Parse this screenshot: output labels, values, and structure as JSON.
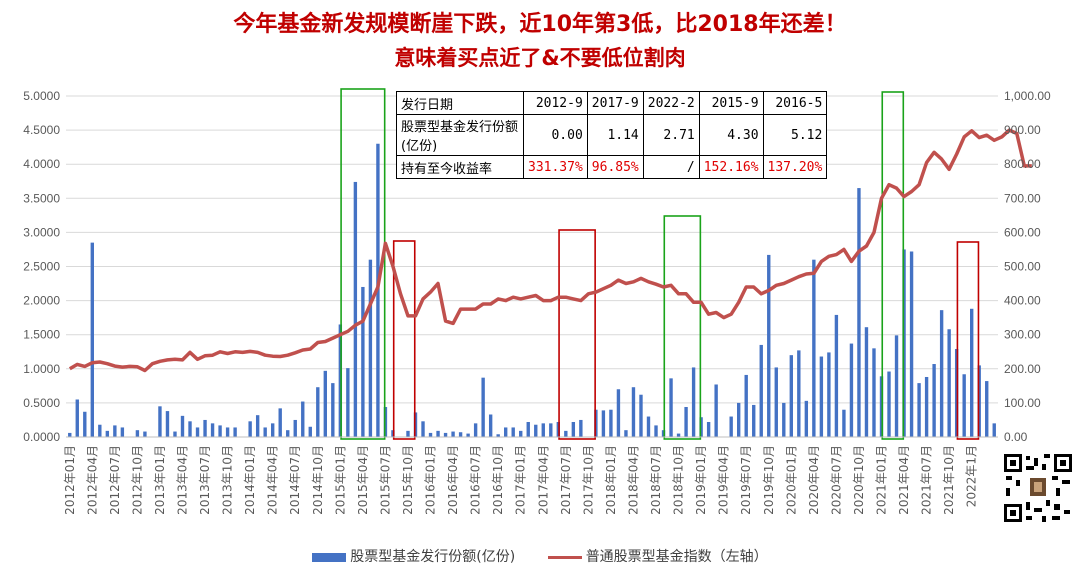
{
  "title": {
    "line1": "今年基金新发规模断崖下跌，近10年第3低，比2018年还差！",
    "line2": "意味着买点近了&不要低位割肉"
  },
  "colors": {
    "bar": "#4472c4",
    "line": "#c0504d",
    "title": "#c00000",
    "green_box": "#1aa31a",
    "red_box": "#c00000",
    "red_text": "#e00000"
  },
  "info_table": {
    "header": [
      "发行日期",
      "2012-9",
      "2017-9",
      "2022-2",
      "2015-9",
      "2016-5"
    ],
    "rows": [
      {
        "label": "股票型基金发行份额(亿份)",
        "values": [
          "0.00",
          "1.14",
          "2.71",
          "4.30",
          "5.12"
        ]
      },
      {
        "label": "持有至今收益率",
        "values": [
          "331.37%",
          "96.85%",
          "/",
          "152.16%",
          "137.20%"
        ]
      }
    ]
  },
  "legend": [
    "股票型基金发行份额(亿份)",
    "普通股票型基金指数（左轴）"
  ],
  "chart_data": {
    "type": "bar",
    "left_axis": {
      "min": 0,
      "max": 5,
      "ticks": [
        "0.0000",
        "0.5000",
        "1.0000",
        "1.5000",
        "2.0000",
        "2.5000",
        "3.0000",
        "3.5000",
        "4.0000",
        "4.5000",
        "5.0000"
      ]
    },
    "right_axis": {
      "min": 0,
      "max": 1000,
      "ticks": [
        "0.00",
        "100.00",
        "200.00",
        "300.00",
        "400.00",
        "500.00",
        "600.00",
        "700.00",
        "800.00",
        "900.00",
        "1,000.00"
      ]
    },
    "x_tick_labels": [
      "2012年01月",
      "2012年04月",
      "2012年07月",
      "2012年10月",
      "2013年01月",
      "2013年04月",
      "2013年07月",
      "2013年10月",
      "2014年01月",
      "2014年04月",
      "2014年07月",
      "2014年10月",
      "2015年01月",
      "2015年04月",
      "2015年07月",
      "2015年10月",
      "2016年01月",
      "2016年04月",
      "2016年07月",
      "2016年10月",
      "2017年01月",
      "2017年04月",
      "2017年07月",
      "2017年10月",
      "2018年01月",
      "2018年04月",
      "2018年07月",
      "2018年10月",
      "2019年01月",
      "2019年04月",
      "2019年07月",
      "2019年10月",
      "2020年01月",
      "2020年04月",
      "2020年07月",
      "2020年10月",
      "2021年01月",
      "2021年04月",
      "2021年07月",
      "2021年10月",
      "2022年1月"
    ],
    "series": [
      {
        "name": "股票型基金发行份额(亿份)",
        "type": "bar",
        "values": [
          0.06,
          0.55,
          0.37,
          2.85,
          0.18,
          0.09,
          0.17,
          0.14,
          0,
          0.1,
          0.08,
          0,
          0.45,
          0.38,
          0.08,
          0.31,
          0.23,
          0.14,
          0.25,
          0.2,
          0.17,
          0.14,
          0.14,
          0,
          0.23,
          0.32,
          0.14,
          0.2,
          0.42,
          0.1,
          0.25,
          0.52,
          0.15,
          0.73,
          0.97,
          0.79,
          1.65,
          1.01,
          3.74,
          2.2,
          2.6,
          4.3,
          0.44,
          0.1,
          0,
          0.09,
          0.36,
          0.23,
          0.06,
          0.09,
          0.06,
          0.08,
          0.07,
          0.05,
          0.2,
          0.87,
          0.33,
          0.04,
          0.14,
          0.14,
          0.09,
          0.22,
          0.18,
          0.2,
          0.2,
          0.22,
          0.09,
          0.22,
          0.25,
          0,
          0.4,
          0.39,
          0.4,
          0.7,
          0.1,
          0.73,
          0.62,
          0.3,
          0.17,
          0.1,
          0.86,
          0.05,
          0.44,
          1.02,
          0.29,
          0.22,
          0.77,
          0,
          0.3,
          0.5,
          0.91,
          0.47,
          1.35,
          2.67,
          1.02,
          0.5,
          1.2,
          1.27,
          0.53,
          2.6,
          1.18,
          1.24,
          1.79,
          0.4,
          1.37,
          3.65,
          1.61,
          1.3,
          0.89,
          0.96,
          1.49,
          2.75,
          2.72,
          0.79,
          0.88,
          1.07,
          1.86,
          1.58,
          1.29,
          0.92,
          1.88,
          1.05,
          0.82,
          0.2
        ]
      },
      {
        "name": "普通股票型基金指数（左轴）",
        "type": "line",
        "values": [
          200,
          213,
          207,
          218,
          220,
          215,
          208,
          205,
          207,
          206,
          195,
          215,
          222,
          226,
          228,
          226,
          248,
          228,
          238,
          240,
          250,
          245,
          250,
          248,
          251,
          248,
          240,
          237,
          236,
          240,
          247,
          255,
          258,
          277,
          280,
          290,
          300,
          310,
          328,
          340,
          390,
          440,
          568,
          500,
          420,
          355,
          355,
          405,
          425,
          450,
          340,
          333,
          375,
          375,
          375,
          390,
          390,
          405,
          400,
          410,
          405,
          410,
          415,
          400,
          400,
          410,
          410,
          405,
          400,
          420,
          425,
          435,
          445,
          460,
          450,
          455,
          465,
          455,
          448,
          440,
          445,
          420,
          420,
          395,
          395,
          360,
          365,
          350,
          360,
          395,
          440,
          440,
          420,
          430,
          445,
          450,
          460,
          470,
          478,
          480,
          515,
          530,
          535,
          550,
          515,
          545,
          560,
          600,
          700,
          740,
          730,
          705,
          720,
          740,
          805,
          835,
          815,
          785,
          830,
          880,
          898,
          878,
          885,
          870,
          880,
          900,
          890,
          795,
          795
        ]
      }
    ],
    "highlight_boxes": [
      {
        "color": "green"
      },
      {
        "color": "red"
      },
      {
        "color": "red"
      },
      {
        "color": "green"
      },
      {
        "color": "green"
      },
      {
        "color": "red"
      }
    ]
  }
}
